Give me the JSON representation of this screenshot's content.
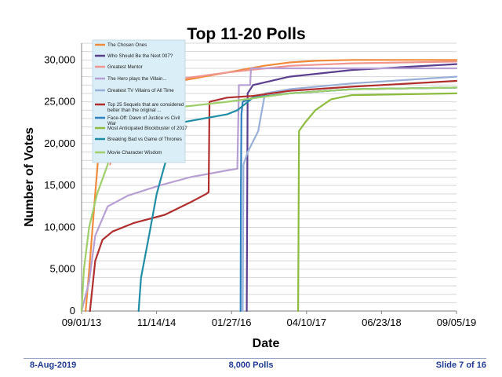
{
  "footer": {
    "date": "8-Aug-2019",
    "center": "8,000 Polls",
    "slide": "Slide 7 of 16"
  },
  "chart_data": {
    "type": "line",
    "title": "Top 11-20 Polls",
    "xlabel": "Date",
    "ylabel": "Number of Votes",
    "x_ticks": [
      "09/01/13",
      "11/14/14",
      "01/27/16",
      "04/10/17",
      "06/23/18",
      "09/05/19"
    ],
    "x_range": [
      "2013-09-01",
      "2019-09-05"
    ],
    "ylim": [
      0,
      32000
    ],
    "y_ticks": [
      0,
      5000,
      10000,
      15000,
      20000,
      25000,
      30000
    ],
    "y_tick_labels": [
      "0",
      "5,000",
      "10,000",
      "15,000",
      "20,000",
      "25,000",
      "30,000"
    ],
    "grid": true,
    "legend_position": "top-left",
    "series": [
      {
        "name": "The Chosen Ones",
        "color": "#f08a3c",
        "points": [
          [
            "2013-09-25",
            0
          ],
          [
            "2013-10-20",
            6000
          ],
          [
            "2013-11-20",
            14000
          ],
          [
            "2013-12-10",
            19000
          ],
          [
            "2014-02-15",
            25000
          ],
          [
            "2014-08-01",
            26500
          ],
          [
            "2015-04-01",
            27500
          ],
          [
            "2016-01-01",
            28500
          ],
          [
            "2016-08-01",
            29300
          ],
          [
            "2017-01-01",
            29700
          ],
          [
            "2017-06-01",
            29900
          ],
          [
            "2018-01-01",
            30000
          ],
          [
            "2019-09-05",
            30000
          ]
        ]
      },
      {
        "name": "Who Should Be the Next 007?",
        "color": "#5b3f8f",
        "points": [
          [
            "2016-04-25",
            0
          ],
          [
            "2016-04-30",
            26000
          ],
          [
            "2016-06-01",
            27000
          ],
          [
            "2017-01-01",
            28000
          ],
          [
            "2018-01-01",
            28800
          ],
          [
            "2019-09-05",
            29500
          ]
        ]
      },
      {
        "name": "Greatest Mentor",
        "color": "#f0968f",
        "points": [
          [
            "2014-02-15",
            17500
          ],
          [
            "2014-06-01",
            26500
          ],
          [
            "2015-01-01",
            27500
          ],
          [
            "2016-01-01",
            28500
          ],
          [
            "2017-01-01",
            29300
          ],
          [
            "2018-01-01",
            29600
          ],
          [
            "2019-09-05",
            29800
          ]
        ]
      },
      {
        "name": "The Hero plays the Villain...",
        "color": "#b79fd3",
        "points": [
          [
            "2013-09-01",
            0
          ],
          [
            "2013-10-15",
            3500
          ],
          [
            "2013-11-20",
            9000
          ],
          [
            "2014-02-01",
            12500
          ],
          [
            "2014-06-01",
            13800
          ],
          [
            "2014-12-01",
            15000
          ],
          [
            "2015-06-01",
            16000
          ],
          [
            "2016-01-01",
            16800
          ],
          [
            "2016-03-01",
            17000
          ],
          [
            "2016-03-10",
            27000
          ],
          [
            "2016-05-15",
            27000
          ],
          [
            "2016-05-20",
            29000
          ],
          [
            "2017-06-01",
            29000
          ],
          [
            "2019-09-05",
            29000
          ]
        ]
      },
      {
        "name": "Greatest TV Villains of All Time",
        "color": "#98b0d8",
        "points": [
          [
            "2016-04-01",
            0
          ],
          [
            "2016-04-06",
            17500
          ],
          [
            "2016-05-01",
            19000
          ],
          [
            "2016-07-01",
            21500
          ],
          [
            "2016-08-01",
            25000
          ],
          [
            "2016-08-10",
            26000
          ],
          [
            "2017-01-01",
            26500
          ],
          [
            "2018-01-01",
            27200
          ],
          [
            "2019-09-05",
            28000
          ]
        ]
      },
      {
        "name": "Top 25 Sequels that are considered better than the original ...",
        "color": "#b02e2e",
        "points": [
          [
            "2013-10-20",
            0
          ],
          [
            "2013-11-20",
            6000
          ],
          [
            "2014-01-01",
            8500
          ],
          [
            "2014-03-01",
            9500
          ],
          [
            "2014-07-01",
            10500
          ],
          [
            "2015-01-01",
            11500
          ],
          [
            "2015-06-01",
            13000
          ],
          [
            "2015-09-01",
            14000
          ],
          [
            "2015-09-15",
            14200
          ],
          [
            "2015-09-20",
            25000
          ],
          [
            "2016-01-01",
            25500
          ],
          [
            "2016-06-01",
            25700
          ],
          [
            "2017-01-01",
            26300
          ],
          [
            "2018-01-01",
            26800
          ],
          [
            "2019-09-05",
            27500
          ]
        ]
      },
      {
        "name": "Face-Off: Dawn of Justice vs Civil War",
        "color": "#2f7fc1",
        "points": [
          [
            "2016-03-20",
            0
          ],
          [
            "2016-03-22",
            15000
          ],
          [
            "2016-03-25",
            23500
          ],
          [
            "2016-04-01",
            25000
          ],
          [
            "2016-06-01",
            25500
          ],
          [
            "2017-01-01",
            26000
          ],
          [
            "2018-01-01",
            26500
          ],
          [
            "2019-09-05",
            26700
          ]
        ]
      },
      {
        "name": "Most Anticipated Blockbuster of 2017",
        "color": "#8cbb3e",
        "points": [
          [
            "2017-02-20",
            0
          ],
          [
            "2017-02-25",
            21500
          ],
          [
            "2017-04-01",
            22500
          ],
          [
            "2017-06-01",
            24000
          ],
          [
            "2017-09-01",
            25300
          ],
          [
            "2018-01-01",
            25800
          ],
          [
            "2019-09-05",
            26000
          ]
        ]
      },
      {
        "name": "Breaking Bad vs Game of Thrones",
        "color": "#1f8da5",
        "points": [
          [
            "2014-08-01",
            0
          ],
          [
            "2014-08-15",
            4000
          ],
          [
            "2014-10-01",
            9000
          ],
          [
            "2014-11-15",
            14000
          ],
          [
            "2015-01-01",
            17500
          ],
          [
            "2015-04-01",
            22500
          ],
          [
            "2016-01-01",
            23500
          ],
          [
            "2016-03-01",
            24000
          ],
          [
            "2016-06-01",
            25500
          ],
          [
            "2017-01-01",
            26000
          ],
          [
            "2018-01-01",
            26500
          ],
          [
            "2019-09-05",
            26700
          ]
        ]
      },
      {
        "name": "Movie Character Wisdom",
        "color": "#9fcf6b",
        "points": [
          [
            "2013-09-01",
            0
          ],
          [
            "2013-09-15",
            5000
          ],
          [
            "2013-10-15",
            10000
          ],
          [
            "2013-12-01",
            14000
          ],
          [
            "2014-02-01",
            17500
          ],
          [
            "2014-03-01",
            21000
          ],
          [
            "2014-05-01",
            23000
          ],
          [
            "2014-10-01",
            24000
          ],
          [
            "2015-06-01",
            24500
          ],
          [
            "2016-01-01",
            25000
          ],
          [
            "2017-01-01",
            26000
          ],
          [
            "2018-01-01",
            26500
          ],
          [
            "2019-09-05",
            26700
          ]
        ]
      }
    ]
  }
}
